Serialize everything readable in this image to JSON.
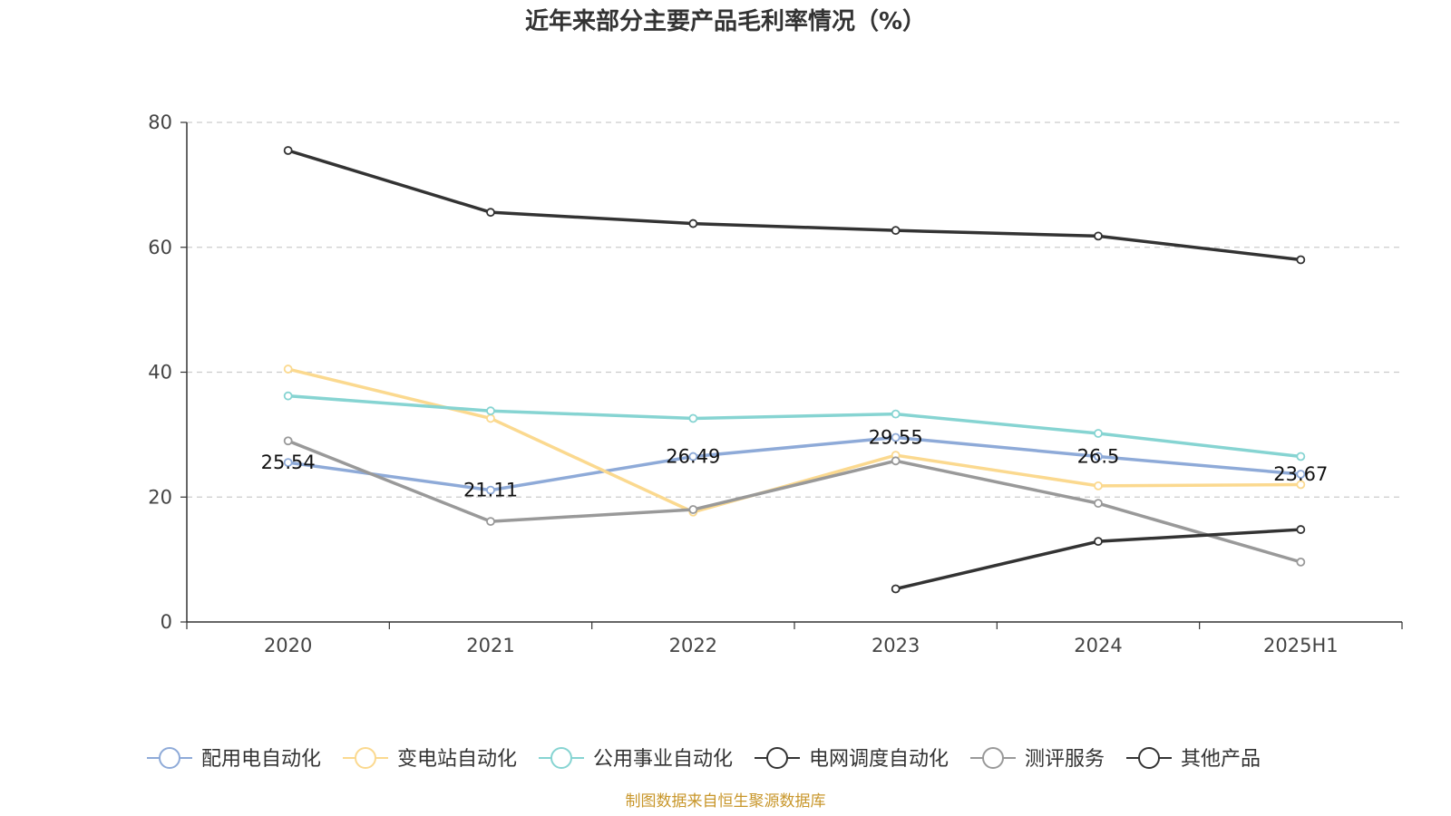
{
  "chart_data": {
    "type": "line",
    "title": "近年来部分主要产品毛利率情况（%）",
    "categories": [
      "2020",
      "2021",
      "2022",
      "2023",
      "2024",
      "2025H1"
    ],
    "ylim": [
      0,
      80
    ],
    "yticks": [
      "0",
      "20",
      "40",
      "60",
      "80"
    ],
    "grid": true,
    "legend_position": "bottom",
    "series": [
      {
        "name": "配用电自动化",
        "color": "#8eaad8",
        "values": [
          25.54,
          21.11,
          26.49,
          29.55,
          26.5,
          23.67
        ],
        "labels": [
          "25.54",
          "21.11",
          "26.49",
          "29.55",
          "26.5",
          "23.67"
        ]
      },
      {
        "name": "变电站自动化",
        "color": "#fbd98f",
        "values": [
          40.5,
          32.6,
          17.6,
          26.7,
          21.8,
          22.0
        ]
      },
      {
        "name": "公用事业自动化",
        "color": "#86d4d2",
        "values": [
          36.2,
          33.8,
          32.6,
          33.3,
          30.2,
          26.5
        ]
      },
      {
        "name": "电网调度自动化",
        "color": "#333333",
        "values": [
          75.5,
          65.6,
          63.8,
          62.7,
          61.8,
          58.0
        ]
      },
      {
        "name": "测评服务",
        "color": "#999999",
        "values": [
          29.0,
          16.1,
          18.0,
          25.8,
          19.0,
          9.6
        ]
      },
      {
        "name": "其他产品",
        "color": "#333333",
        "values": [
          null,
          null,
          null,
          5.3,
          12.9,
          14.8
        ]
      }
    ],
    "source": "制图数据来自恒生聚源数据库"
  }
}
